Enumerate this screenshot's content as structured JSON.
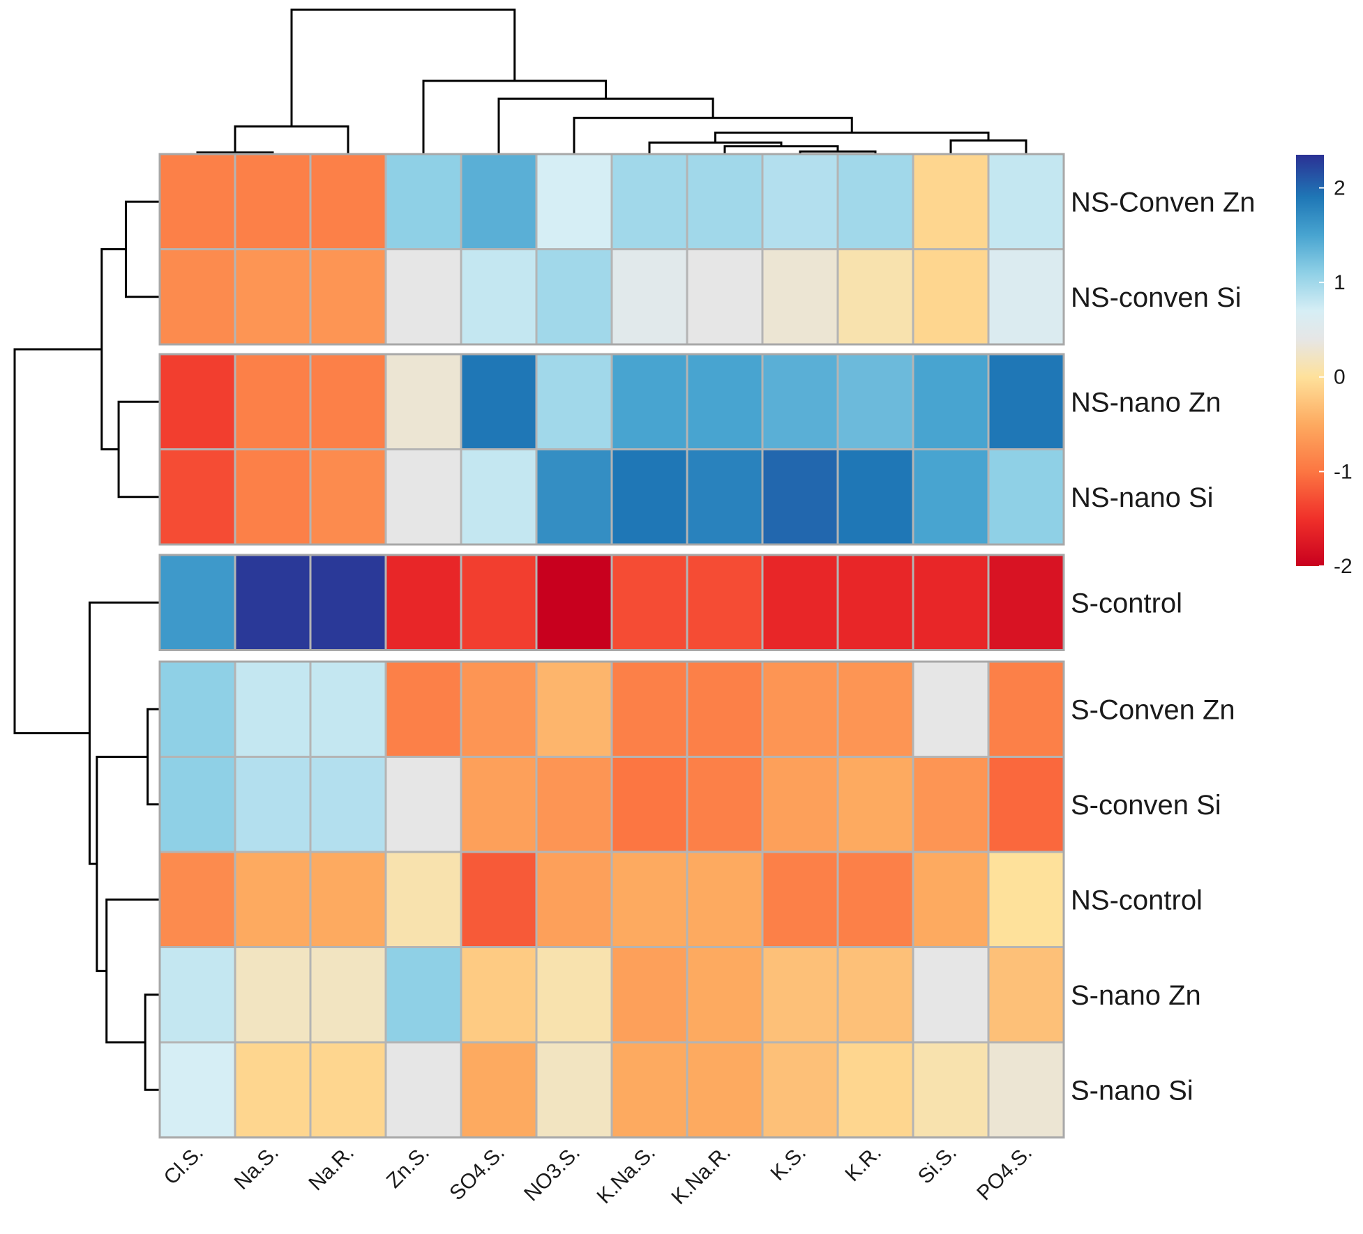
{
  "chart_data": {
    "type": "heatmap",
    "title": "",
    "columns": [
      "Cl.S.",
      "Na.S.",
      "Na.R.",
      "Zn.S.",
      "SO4.S.",
      "NO3.S.",
      "K.Na.S.",
      "K.Na.R.",
      "K.S.",
      "K.R.",
      "Si.S.",
      "PO4.S."
    ],
    "rows": [
      "NS-Conven Zn",
      "NS-conven Si",
      "NS-nano Zn",
      "NS-nano Si",
      "S-control",
      "S-Conven Zn",
      "S-conven Si",
      "NS-control",
      "S-nano Zn",
      "S-nano Si"
    ],
    "row_groups": [
      [
        0,
        1
      ],
      [
        2,
        3
      ],
      [
        4
      ],
      [
        5,
        6,
        7,
        8,
        9
      ]
    ],
    "values": [
      [
        -0.9,
        -0.9,
        -0.9,
        1.1,
        1.4,
        0.7,
        1.0,
        1.0,
        0.9,
        1.0,
        -0.1,
        0.8
      ],
      [
        -0.8,
        -0.7,
        -0.7,
        0.4,
        0.8,
        1.0,
        0.5,
        0.4,
        0.3,
        0.1,
        -0.1,
        0.6
      ],
      [
        -1.4,
        -0.9,
        -0.9,
        0.3,
        1.9,
        1.0,
        1.5,
        1.5,
        1.4,
        1.3,
        1.5,
        1.9
      ],
      [
        -1.3,
        -0.9,
        -0.8,
        0.4,
        0.8,
        1.7,
        1.9,
        1.8,
        2.0,
        1.9,
        1.5,
        1.1
      ],
      [
        1.6,
        2.3,
        2.3,
        -1.6,
        -1.4,
        -2.0,
        -1.3,
        -1.3,
        -1.6,
        -1.6,
        -1.6,
        -1.8
      ],
      [
        1.1,
        0.8,
        0.8,
        -0.9,
        -0.7,
        -0.4,
        -0.9,
        -0.9,
        -0.7,
        -0.7,
        0.4,
        -0.9
      ],
      [
        1.1,
        0.9,
        0.9,
        0.4,
        -0.6,
        -0.7,
        -1.0,
        -0.9,
        -0.6,
        -0.5,
        -0.7,
        -1.1
      ],
      [
        -0.8,
        -0.5,
        -0.5,
        0.1,
        -1.2,
        -0.6,
        -0.5,
        -0.5,
        -0.9,
        -0.9,
        -0.5,
        0.0
      ],
      [
        0.8,
        0.2,
        0.2,
        1.1,
        -0.2,
        0.1,
        -0.6,
        -0.5,
        -0.3,
        -0.3,
        0.4,
        -0.3
      ],
      [
        0.7,
        -0.1,
        -0.1,
        0.4,
        -0.5,
        0.2,
        -0.5,
        -0.5,
        -0.3,
        -0.1,
        0.1,
        0.3
      ]
    ],
    "color_scale": {
      "min": -2.0,
      "max": 2.35,
      "stops": [
        {
          "value": -2.0,
          "color": "#c8001e"
        },
        {
          "value": -1.5,
          "color": "#f0302a"
        },
        {
          "value": -1.0,
          "color": "#fc7642"
        },
        {
          "value": -0.5,
          "color": "#fdaa60"
        },
        {
          "value": 0.0,
          "color": "#fee19b"
        },
        {
          "value": 0.4,
          "color": "#e6e6e6"
        },
        {
          "value": 0.7,
          "color": "#d6eef5"
        },
        {
          "value": 1.1,
          "color": "#8fd0e6"
        },
        {
          "value": 1.5,
          "color": "#48a4d0"
        },
        {
          "value": 1.9,
          "color": "#1f77b6"
        },
        {
          "value": 2.35,
          "color": "#2b3194"
        }
      ],
      "ticks": [
        2,
        1,
        0,
        -1,
        -2
      ],
      "tick_labels": [
        "2",
        "1",
        "0",
        "-1",
        "-2"
      ]
    },
    "col_dendrogram": [
      {
        "left": 0,
        "right": 1,
        "height": 0.3
      },
      {
        "left": 8,
        "right": 9,
        "height": 0.5
      },
      {
        "left": 7,
        "right": 8,
        "height": 1.5
      },
      {
        "left": 6,
        "right": 7,
        "height": 2.2
      },
      {
        "left": 10,
        "right": 11,
        "height": 2.6
      },
      {
        "left": 9,
        "right": 10,
        "height": 4.1
      },
      {
        "left": 5,
        "right": 6,
        "height": 6.9
      },
      {
        "left": 4,
        "right": 5,
        "height": 10.6
      },
      {
        "left": 3,
        "right": 4,
        "height": 14.0
      },
      {
        "left": 0,
        "right": 2,
        "height": 5.3
      },
      {
        "left": 2,
        "right": 3,
        "height": 27.6
      }
    ],
    "row_dendrogram": [
      {
        "top": 0,
        "bottom": 1,
        "height": 1.4
      },
      {
        "top": 2,
        "bottom": 3,
        "height": 1.7
      },
      {
        "top": 5,
        "bottom": 6,
        "height": 0.5
      },
      {
        "top": 8,
        "bottom": 9,
        "height": 0.6
      },
      {
        "top": 7,
        "bottom": 8,
        "height": 2.2
      },
      {
        "top": 5,
        "bottom": 7,
        "height": 2.6
      },
      {
        "top": 0,
        "bottom": 2,
        "height": 2.4
      },
      {
        "top": 4,
        "bottom": 5,
        "height": 2.9
      },
      {
        "top": 0,
        "bottom": 4,
        "height": 6.0
      }
    ]
  }
}
